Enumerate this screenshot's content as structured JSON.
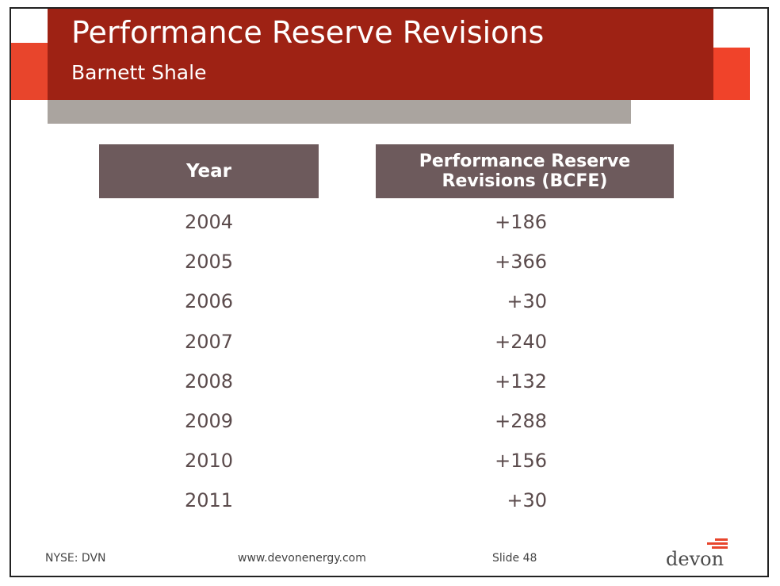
{
  "slide": {
    "title": "Performance Reserve Revisions",
    "subtitle": "Barnett Shale"
  },
  "table": {
    "headers": [
      "Year",
      "Performance Reserve Revisions (BCFE)"
    ],
    "rows": [
      {
        "year": "2004",
        "value": "+186"
      },
      {
        "year": "2005",
        "value": "+366"
      },
      {
        "year": "2006",
        "value": "+30"
      },
      {
        "year": "2007",
        "value": "+240"
      },
      {
        "year": "2008",
        "value": "+132"
      },
      {
        "year": "2009",
        "value": "+288"
      },
      {
        "year": "2010",
        "value": "+156"
      },
      {
        "year": "2011",
        "value": "+30"
      }
    ]
  },
  "footer": {
    "ticker": "NYSE: DVN",
    "url": "www.devonenergy.com",
    "slide_number": "Slide 48",
    "logo_text": "devon"
  },
  "colors": {
    "title_band": "#9e2214",
    "accent_red": "#f0432a",
    "accent_gray": "#aaa49f",
    "header_fill": "#6d5a5c",
    "cell_text": "#5b4b4c"
  }
}
